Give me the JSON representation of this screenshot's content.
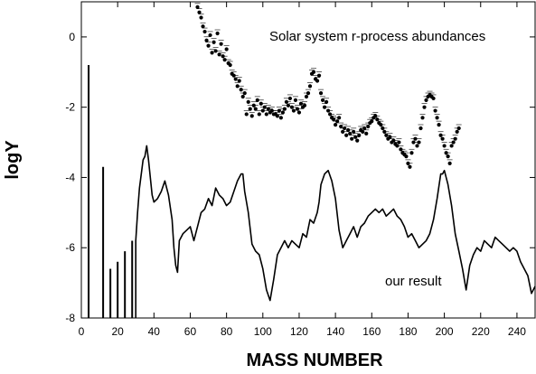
{
  "chart_data": {
    "type": "line",
    "title": "",
    "xlabel": "MASS NUMBER",
    "ylabel": "logY",
    "xlim": [
      0,
      250
    ],
    "ylim": [
      -8,
      1
    ],
    "x_ticks": [
      0,
      20,
      40,
      60,
      80,
      100,
      120,
      140,
      160,
      180,
      200,
      220,
      240
    ],
    "y_ticks": [
      0,
      -2,
      -4,
      -6,
      -8
    ],
    "x_tick_labels": [
      "0",
      "20",
      "40",
      "60",
      "80",
      "100",
      "120",
      "140",
      "160",
      "180",
      "200",
      "220",
      "240"
    ],
    "y_tick_labels": [
      "0",
      "-2",
      "-4",
      "-6",
      "-8"
    ],
    "grid": false,
    "annotations": [
      {
        "text": "Solar system r-process abundances"
      },
      {
        "text": "our result"
      }
    ],
    "series": [
      {
        "style": "line",
        "color": "#000000",
        "spikes": [
          [
            4,
            -0.8
          ],
          [
            12,
            -3.7
          ],
          [
            16,
            -6.6
          ],
          [
            20,
            -6.4
          ],
          [
            24,
            -6.1
          ],
          [
            28,
            -5.8
          ]
        ],
        "x": [
          30,
          31,
          32,
          33,
          34,
          35,
          36,
          37,
          38,
          39,
          40,
          42,
          44,
          46,
          48,
          50,
          51,
          52,
          53,
          54,
          56,
          58,
          60,
          62,
          64,
          66,
          68,
          70,
          72,
          74,
          76,
          78,
          80,
          82,
          84,
          86,
          88,
          89,
          90,
          92,
          94,
          96,
          98,
          100,
          102,
          104,
          106,
          108,
          110,
          112,
          114,
          116,
          118,
          120,
          122,
          124,
          126,
          128,
          130,
          131,
          132,
          134,
          136,
          138,
          140,
          142,
          144,
          146,
          148,
          150,
          152,
          154,
          156,
          158,
          160,
          162,
          164,
          166,
          168,
          170,
          172,
          174,
          176,
          178,
          180,
          182,
          184,
          186,
          188,
          190,
          192,
          194,
          196,
          198,
          199,
          200,
          202,
          204,
          206,
          208,
          210,
          212,
          214,
          216,
          218,
          220,
          222,
          224,
          226,
          228,
          230,
          232,
          234,
          236,
          238,
          240,
          242,
          244,
          246,
          248,
          250
        ],
        "y": [
          -5.8,
          -5.0,
          -4.3,
          -3.9,
          -3.5,
          -3.4,
          -3.1,
          -3.5,
          -4.0,
          -4.5,
          -4.7,
          -4.6,
          -4.4,
          -4.1,
          -4.5,
          -5.2,
          -6.0,
          -6.5,
          -6.7,
          -5.8,
          -5.6,
          -5.5,
          -5.4,
          -5.8,
          -5.4,
          -5.0,
          -4.9,
          -4.6,
          -4.8,
          -4.3,
          -4.5,
          -4.6,
          -4.8,
          -4.7,
          -4.4,
          -4.1,
          -3.9,
          -3.9,
          -4.4,
          -5.0,
          -5.9,
          -6.1,
          -6.2,
          -6.6,
          -7.2,
          -7.5,
          -6.9,
          -6.2,
          -6.0,
          -5.8,
          -6.0,
          -5.8,
          -5.9,
          -6.0,
          -5.6,
          -5.7,
          -5.2,
          -5.3,
          -5.0,
          -4.7,
          -4.2,
          -3.9,
          -3.8,
          -4.1,
          -4.6,
          -5.5,
          -6.0,
          -5.8,
          -5.6,
          -5.4,
          -5.7,
          -5.4,
          -5.3,
          -5.1,
          -5.0,
          -4.9,
          -5.0,
          -4.9,
          -5.1,
          -5.0,
          -4.9,
          -5.1,
          -5.2,
          -5.4,
          -5.7,
          -5.6,
          -5.8,
          -6.0,
          -5.9,
          -5.8,
          -5.6,
          -5.2,
          -4.6,
          -3.9,
          -3.9,
          -3.8,
          -4.2,
          -4.8,
          -5.6,
          -6.1,
          -6.6,
          -7.2,
          -6.5,
          -6.2,
          -6.0,
          -6.1,
          -5.8,
          -5.9,
          -6.0,
          -5.7,
          -5.8,
          -5.9,
          -6.0,
          -6.1,
          -6.0,
          -6.1,
          -6.4,
          -6.6,
          -6.8,
          -7.3,
          -7.1
        ]
      },
      {
        "style": "points",
        "color": "#000000",
        "error_bars": true,
        "x": [
          64,
          65,
          66,
          67,
          68,
          69,
          70,
          71,
          72,
          73,
          74,
          75,
          76,
          77,
          78,
          79,
          80,
          81,
          82,
          83,
          84,
          85,
          86,
          87,
          88,
          89,
          90,
          91,
          92,
          93,
          94,
          95,
          96,
          97,
          98,
          99,
          100,
          101,
          102,
          103,
          104,
          105,
          106,
          107,
          108,
          109,
          110,
          111,
          112,
          113,
          114,
          115,
          116,
          117,
          118,
          119,
          120,
          121,
          122,
          123,
          124,
          125,
          126,
          127,
          128,
          129,
          130,
          131,
          132,
          133,
          134,
          135,
          136,
          137,
          138,
          139,
          140,
          141,
          142,
          143,
          144,
          145,
          146,
          147,
          148,
          149,
          150,
          151,
          152,
          153,
          154,
          155,
          156,
          157,
          158,
          159,
          160,
          161,
          162,
          163,
          164,
          165,
          166,
          167,
          168,
          169,
          170,
          171,
          172,
          173,
          174,
          175,
          176,
          177,
          178,
          179,
          180,
          181,
          182,
          183,
          184,
          185,
          186,
          187,
          188,
          189,
          190,
          191,
          192,
          193,
          194,
          195,
          196,
          197,
          198,
          199,
          200,
          201,
          202,
          203,
          204,
          205,
          206,
          207,
          208
        ],
        "y": [
          0.85,
          0.7,
          0.55,
          0.3,
          0.15,
          -0.1,
          -0.25,
          0.05,
          -0.45,
          -0.15,
          -0.4,
          0.1,
          -0.5,
          -0.2,
          -0.55,
          -0.65,
          -0.35,
          -0.75,
          -0.8,
          -1.05,
          -1.1,
          -1.2,
          -1.4,
          -1.25,
          -1.5,
          -1.7,
          -1.6,
          -2.2,
          -1.85,
          -2.05,
          -2.25,
          -1.95,
          -2.05,
          -1.8,
          -2.2,
          -1.9,
          -2.1,
          -2.0,
          -2.2,
          -2.05,
          -2.15,
          -2.1,
          -2.2,
          -2.2,
          -2.25,
          -2.1,
          -2.3,
          -2.15,
          -2.05,
          -1.85,
          -1.95,
          -1.75,
          -2.0,
          -2.1,
          -1.8,
          -2.05,
          -2.15,
          -1.9,
          -2.0,
          -1.95,
          -1.7,
          -1.6,
          -1.4,
          -1.05,
          -1.0,
          -1.2,
          -1.25,
          -1.1,
          -1.6,
          -1.8,
          -2.0,
          -1.85,
          -2.1,
          -2.2,
          -2.3,
          -2.35,
          -2.5,
          -2.4,
          -2.3,
          -2.55,
          -2.7,
          -2.6,
          -2.8,
          -2.65,
          -2.75,
          -2.9,
          -2.7,
          -2.85,
          -2.95,
          -2.8,
          -2.65,
          -2.7,
          -2.6,
          -2.75,
          -2.55,
          -2.45,
          -2.4,
          -2.3,
          -2.25,
          -2.35,
          -2.45,
          -2.5,
          -2.6,
          -2.7,
          -2.8,
          -2.9,
          -2.85,
          -3.0,
          -2.95,
          -3.05,
          -3.1,
          -3.0,
          -3.2,
          -3.3,
          -3.35,
          -3.4,
          -3.6,
          -3.7,
          -3.3,
          -3.0,
          -2.9,
          -3.1,
          -3.0,
          -2.6,
          -2.3,
          -2.0,
          -1.8,
          -1.7,
          -1.65,
          -1.7,
          -1.75,
          -2.1,
          -2.3,
          -2.5,
          -2.8,
          -2.9,
          -3.1,
          -3.3,
          -3.4,
          -3.6,
          -3.1,
          -3.0,
          -2.9,
          -2.7,
          -2.6
        ]
      }
    ]
  }
}
